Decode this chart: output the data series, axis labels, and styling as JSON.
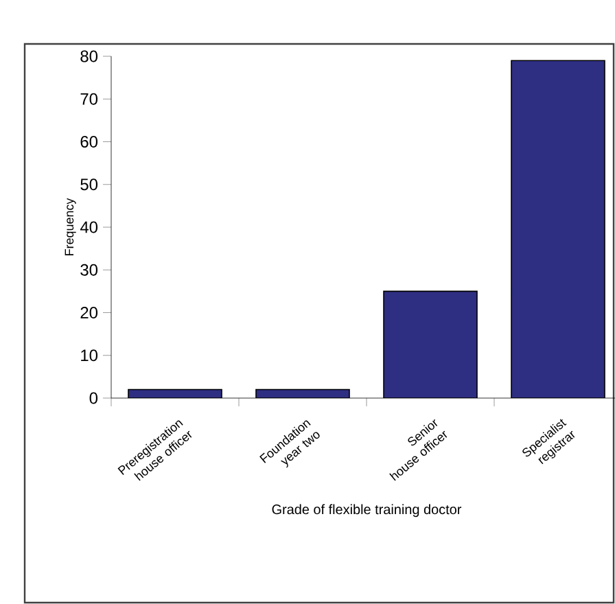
{
  "chart_data": {
    "type": "bar",
    "xlabel": "Grade of flexible training doctor",
    "ylabel": "Frequency",
    "categories": [
      "Preregistration house officer",
      "Foundation year two",
      "Senior house officer",
      "Specialist registrar"
    ],
    "values": [
      2,
      2,
      25,
      79
    ],
    "color": "#2e2e82",
    "ylim": [
      0,
      80
    ],
    "yticks": [
      0,
      10,
      20,
      30,
      40,
      50,
      60,
      70,
      80
    ],
    "grid": false
  }
}
